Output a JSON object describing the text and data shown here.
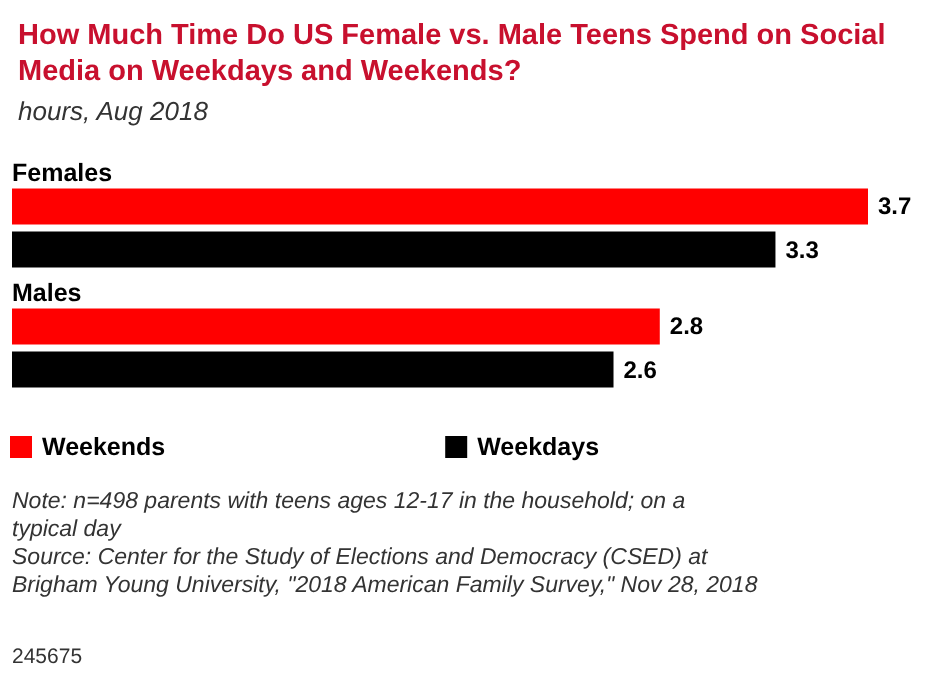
{
  "chart_data": {
    "type": "bar",
    "orientation": "horizontal",
    "title": "How Much Time Do US Female vs. Male Teens Spend on Social Media on Weekdays and Weekends?",
    "subtitle": "hours, Aug 2018",
    "categories": [
      "Females",
      "Males"
    ],
    "series": [
      {
        "name": "Weekends",
        "color": "#ff0000",
        "values": [
          3.7,
          2.8
        ]
      },
      {
        "name": "Weekdays",
        "color": "#000000",
        "values": [
          3.3,
          2.6
        ]
      }
    ],
    "data_labels": true,
    "legend": "bottom",
    "annotations": [
      "Note: n=498 parents with teens ages 12-17 in the household; on a typical day",
      "Source: Center for the Study of Elections and Democracy (CSED) at Brigham Young University, \"2018 American Family Survey,\" Nov 28, 2018",
      "245675"
    ]
  }
}
